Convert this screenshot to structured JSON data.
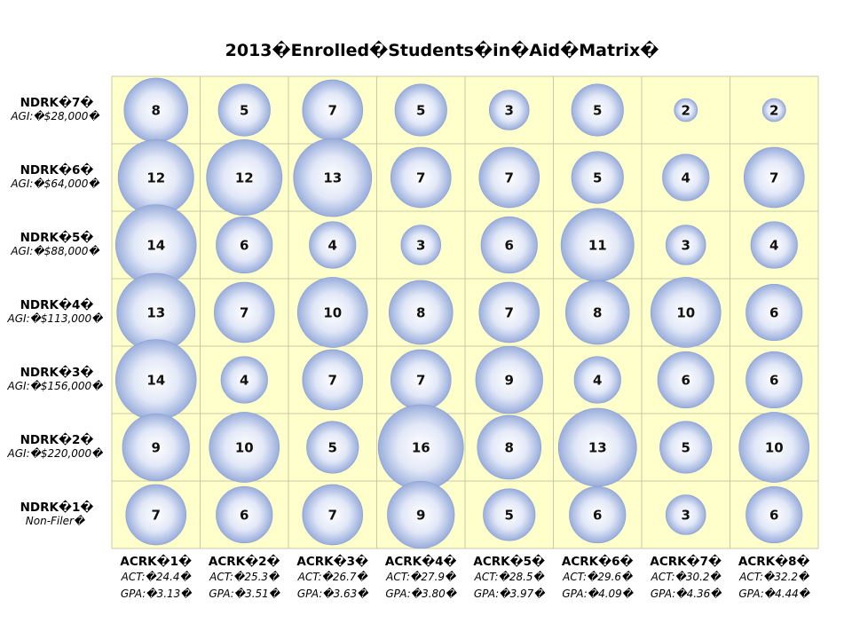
{
  "title": "2013�Enrolled�Students�in�Aid�Matrix�",
  "colors": {
    "background": "#ffffcc",
    "bubble_light": "#ffffff",
    "bubble_dark": "#9aaedc",
    "bubble_stroke": "#8fa3d2",
    "grid": "#c9c9a6"
  },
  "chart_data": {
    "type": "bubble-matrix",
    "title": "2013�Enrolled�Students�in�Aid�Matrix�",
    "rows": [
      {
        "label": "NDRK�7�",
        "sub": "AGI:�$28,000�",
        "values": [
          8,
          5,
          7,
          5,
          3,
          5,
          2,
          2
        ]
      },
      {
        "label": "NDRK�6�",
        "sub": "AGI:�$64,000�",
        "values": [
          12,
          12,
          13,
          7,
          7,
          5,
          4,
          7
        ]
      },
      {
        "label": "NDRK�5�",
        "sub": "AGI:�$88,000�",
        "values": [
          14,
          6,
          4,
          3,
          6,
          11,
          3,
          4
        ]
      },
      {
        "label": "NDRK�4�",
        "sub": "AGI:�$113,000�",
        "values": [
          13,
          7,
          10,
          8,
          7,
          8,
          10,
          6
        ]
      },
      {
        "label": "NDRK�3�",
        "sub": "AGI:�$156,000�",
        "values": [
          14,
          4,
          7,
          7,
          9,
          4,
          6,
          6
        ]
      },
      {
        "label": "NDRK�2�",
        "sub": "AGI:�$220,000�",
        "values": [
          9,
          10,
          5,
          16,
          8,
          13,
          5,
          10
        ]
      },
      {
        "label": "NDRK�1�",
        "sub": "Non-Filer�",
        "values": [
          7,
          6,
          7,
          9,
          5,
          6,
          3,
          6
        ]
      }
    ],
    "columns": [
      {
        "label": "ACRK�1�",
        "act": "ACT:�24.4�",
        "gpa": "GPA:�3.13�"
      },
      {
        "label": "ACRK�2�",
        "act": "ACT:�25.3�",
        "gpa": "GPA:�3.51�"
      },
      {
        "label": "ACRK�3�",
        "act": "ACT:�26.7�",
        "gpa": "GPA:�3.63�"
      },
      {
        "label": "ACRK�4�",
        "act": "ACT:�27.9�",
        "gpa": "GPA:�3.80�"
      },
      {
        "label": "ACRK�5�",
        "act": "ACT:�28.5�",
        "gpa": "GPA:�3.97�"
      },
      {
        "label": "ACRK�6�",
        "act": "ACT:�29.6�",
        "gpa": "GPA:�4.09�"
      },
      {
        "label": "ACRK�7�",
        "act": "ACT:�30.2�",
        "gpa": "GPA:�4.36�"
      },
      {
        "label": "ACRK�8�",
        "act": "ACT:�32.2�",
        "gpa": "GPA:�4.44�"
      }
    ],
    "size_range": [
      2,
      16
    ],
    "grid": true
  }
}
